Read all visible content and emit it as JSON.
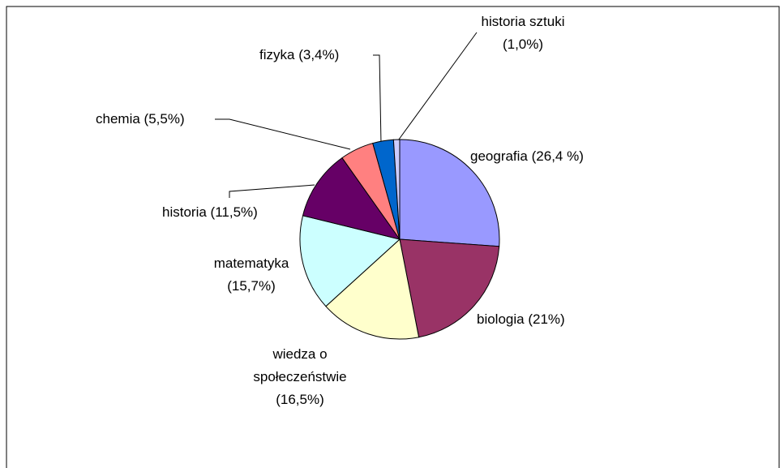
{
  "chart_data": {
    "type": "pie",
    "categories": [
      "geografia",
      "biologia",
      "wiedza o społeczeństwie",
      "matematyka",
      "historia",
      "chemia",
      "fizyka",
      "historia sztuki"
    ],
    "values": [
      26.4,
      21,
      16.5,
      15.7,
      11.5,
      5.5,
      3.4,
      1.0
    ],
    "value_labels": [
      "(26,4 %)",
      "(21%)",
      "(16,5%)",
      "(15,7%)",
      "(11,5%)",
      "(5,5%)",
      "(3,4%)",
      "(1,0%)"
    ],
    "colors": [
      "#9999ff",
      "#993366",
      "#ffffcc",
      "#ccffff",
      "#660066",
      "#ff8080",
      "#0066cc",
      "#ccccff"
    ]
  }
}
